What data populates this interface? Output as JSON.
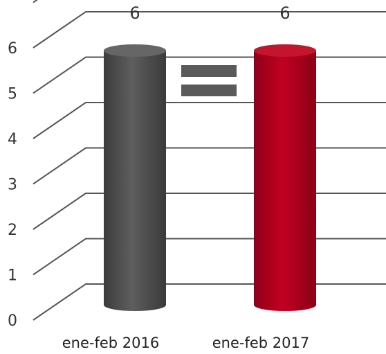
{
  "chart_data": {
    "type": "bar",
    "categories": [
      "ene-feb 2016",
      "ene-feb 2017"
    ],
    "series": [
      {
        "values": [
          6,
          6
        ]
      }
    ],
    "data_labels": [
      "6",
      "6"
    ],
    "yticks": [
      "0",
      "1",
      "2",
      "3",
      "4",
      "5",
      "6"
    ],
    "ylim": [
      0,
      6
    ],
    "grid": true,
    "legend": "none",
    "three_d": true,
    "colors": [
      "#555555",
      "#b5001e"
    ],
    "annotation_symbol": "equals-sign",
    "annotation_color": "#5a5a5a"
  }
}
